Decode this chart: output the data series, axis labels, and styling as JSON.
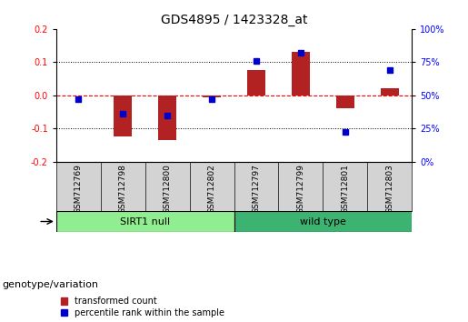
{
  "title": "GDS4895 / 1423328_at",
  "samples": [
    "GSM712769",
    "GSM712798",
    "GSM712800",
    "GSM712802",
    "GSM712797",
    "GSM712799",
    "GSM712801",
    "GSM712803"
  ],
  "transformed_counts": [
    0.0,
    -0.125,
    -0.135,
    -0.005,
    0.075,
    0.13,
    -0.04,
    0.022
  ],
  "percentile_ranks": [
    47,
    36,
    35,
    47,
    76,
    82,
    22,
    69
  ],
  "groups": [
    {
      "label": "SIRT1 null",
      "start": 0,
      "end": 4,
      "color": "#90EE90"
    },
    {
      "label": "wild type",
      "start": 4,
      "end": 8,
      "color": "#3CB371"
    }
  ],
  "ylim_left": [
    -0.2,
    0.2
  ],
  "ylim_right": [
    0,
    100
  ],
  "yticks_left": [
    -0.2,
    -0.1,
    0.0,
    0.1,
    0.2
  ],
  "yticks_right": [
    0,
    25,
    50,
    75,
    100
  ],
  "bar_color": "#B22222",
  "marker_color": "#0000CC",
  "zero_line_color": "#FF0000",
  "dotted_line_color": "#000000",
  "background_color": "#FFFFFF",
  "group_label": "genotype/variation",
  "legend_items": [
    "transformed count",
    "percentile rank within the sample"
  ],
  "title_fontsize": 10,
  "tick_fontsize": 7,
  "label_fontsize": 8,
  "sample_fontsize": 6.5,
  "bar_width": 0.4
}
